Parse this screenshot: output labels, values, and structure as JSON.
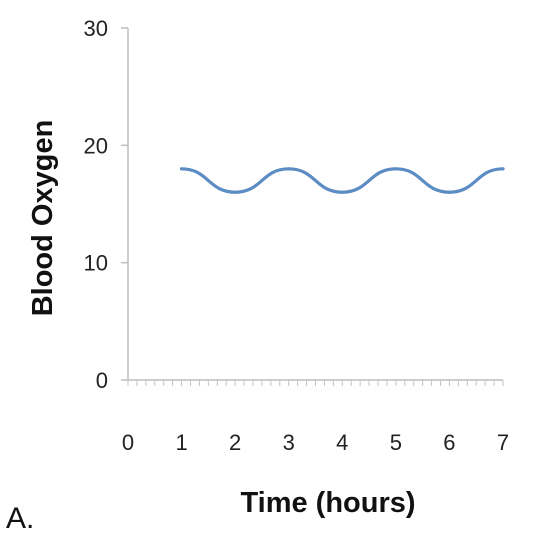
{
  "panel_label": "A.",
  "chart_data": {
    "type": "line",
    "title": "",
    "xlabel": "Time (hours)",
    "ylabel": "Blood Oxygen",
    "xlim": [
      0,
      7
    ],
    "ylim": [
      0,
      30
    ],
    "x_ticks": [
      0,
      1,
      2,
      3,
      4,
      5,
      6,
      7
    ],
    "y_ticks": [
      0,
      10,
      20,
      30
    ],
    "grid": false,
    "legend": "none",
    "series": [
      {
        "color": "#5b8cc4",
        "x": [
          1,
          2,
          3,
          4,
          5,
          6,
          7
        ],
        "y": [
          18,
          16,
          18,
          16,
          18,
          16,
          18
        ]
      }
    ]
  }
}
